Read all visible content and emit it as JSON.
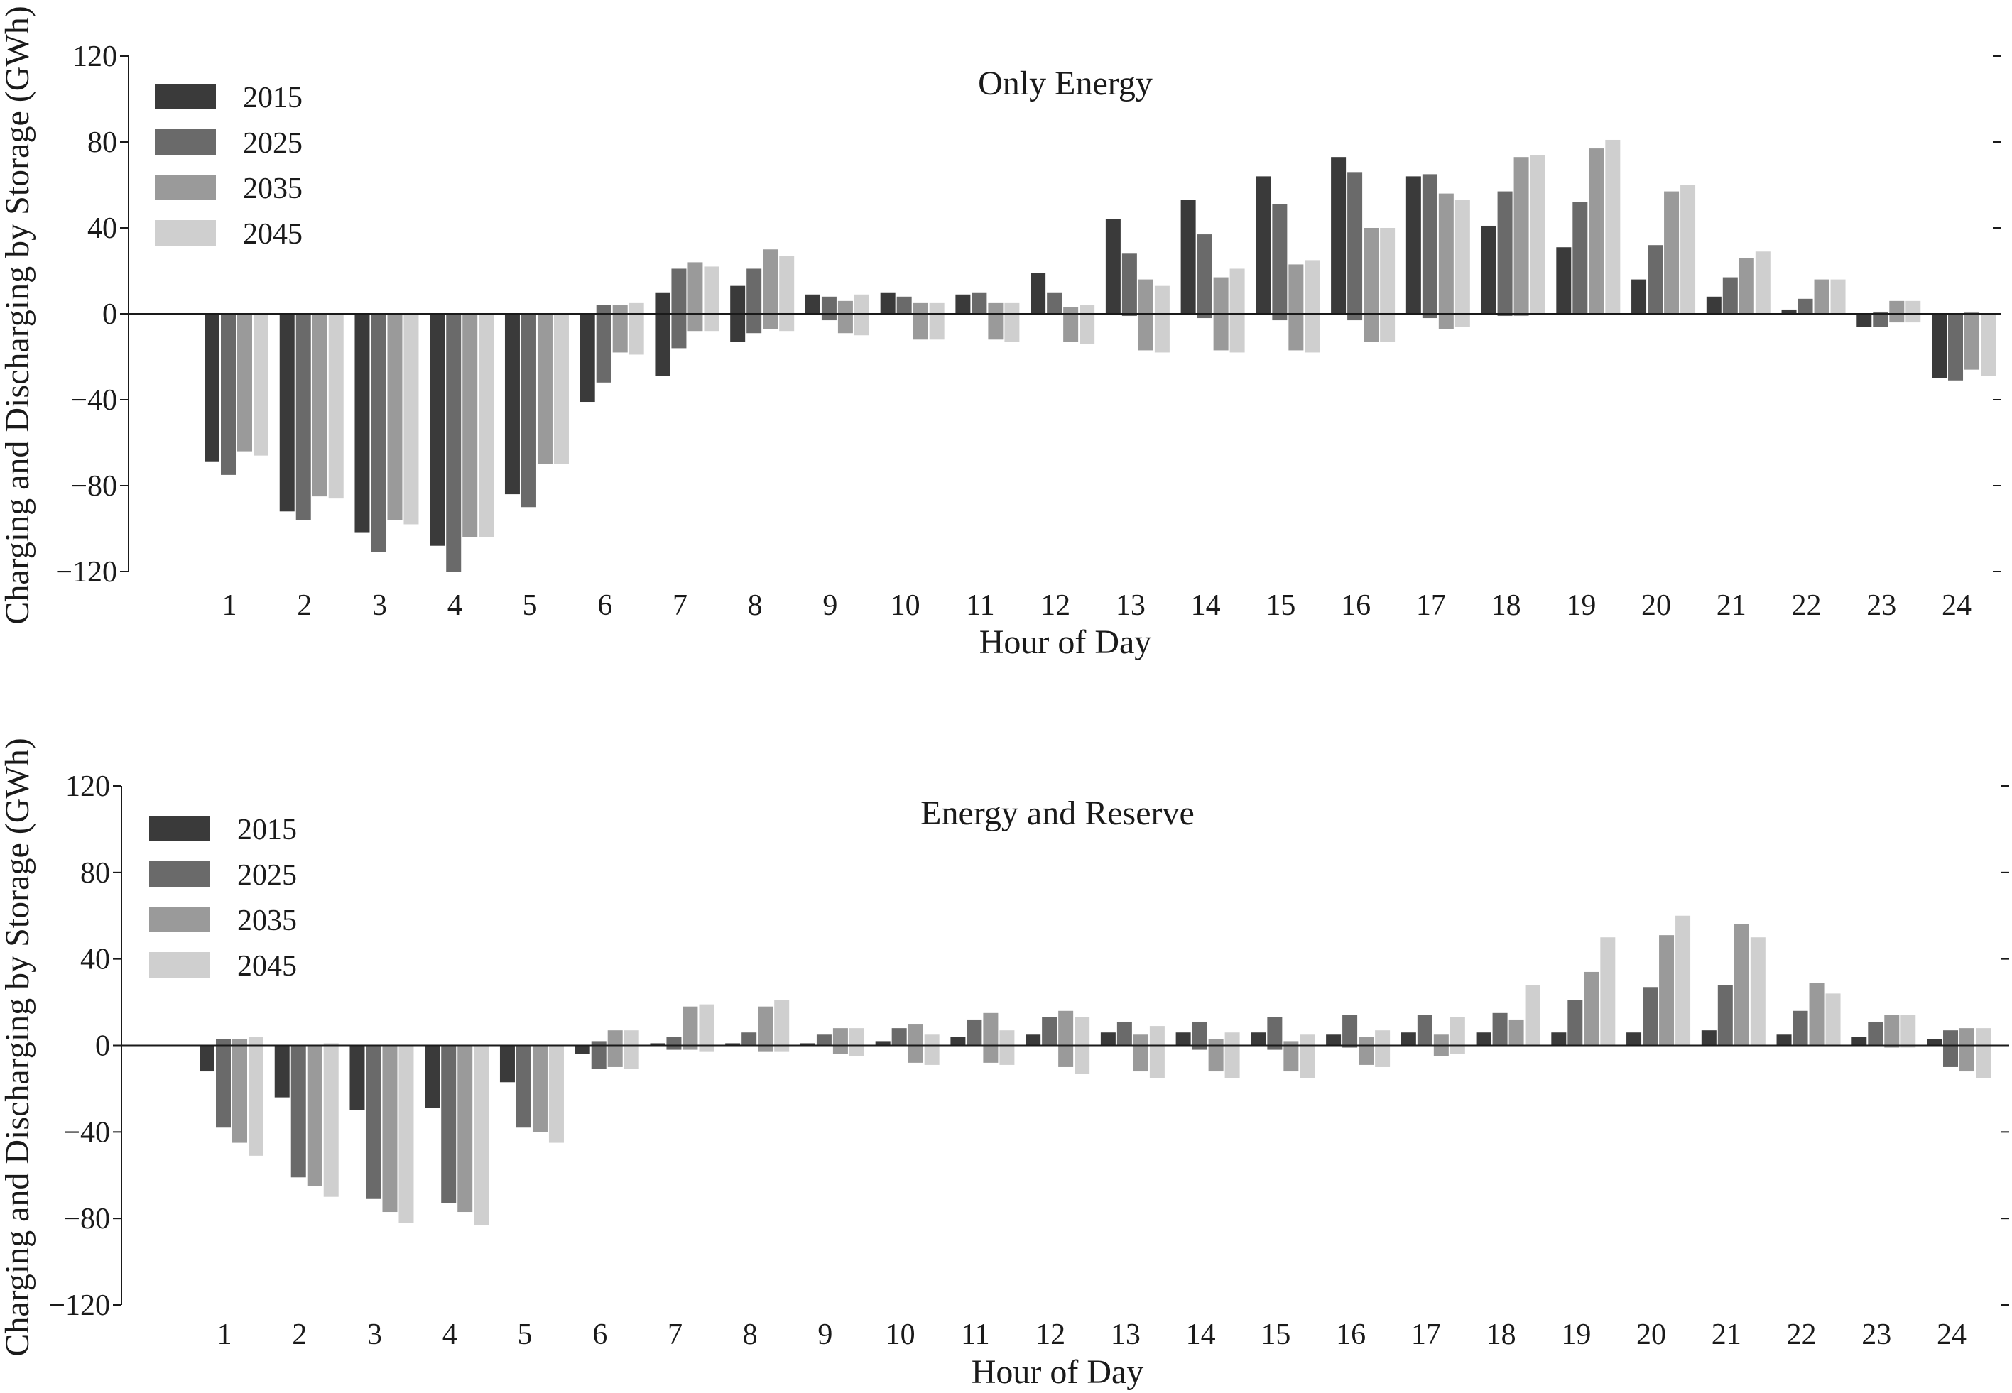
{
  "colors": {
    "2015": "#3a3a3a",
    "2025": "#6a6a6a",
    "2035": "#9a9a9a",
    "2045": "#cfcfcf",
    "axis": "#1a1a1a"
  },
  "chart_data": [
    {
      "type": "bar",
      "title": "Only Energy",
      "xlabel": "Hour of Day",
      "ylabel": "Charging and Discharging by Storage (GWh)",
      "ylim": [
        -120,
        120
      ],
      "yticks": [
        120,
        80,
        40,
        0,
        -40,
        -80,
        -120
      ],
      "ytick_labels": [
        "120",
        "80",
        "40",
        "0",
        "−40",
        "−80",
        "−120"
      ],
      "categories": [
        "1",
        "2",
        "3",
        "4",
        "5",
        "6",
        "7",
        "8",
        "9",
        "10",
        "11",
        "12",
        "13",
        "14",
        "15",
        "16",
        "17",
        "18",
        "19",
        "20",
        "21",
        "22",
        "23",
        "24"
      ],
      "legend": [
        "2015",
        "2025",
        "2035",
        "2045"
      ],
      "legend_position": "top-left",
      "series": [
        {
          "name": "2015",
          "pos": [
            0,
            0,
            0,
            0,
            0,
            0,
            10,
            13,
            9,
            10,
            9,
            19,
            44,
            53,
            64,
            73,
            64,
            41,
            31,
            16,
            8,
            2,
            0,
            0
          ],
          "neg": [
            -69,
            -92,
            -102,
            -108,
            -84,
            -41,
            -29,
            -13,
            0,
            0,
            0,
            0,
            0,
            0,
            0,
            0,
            0,
            0,
            0,
            0,
            0,
            0,
            -6,
            -30
          ]
        },
        {
          "name": "2025",
          "pos": [
            0,
            0,
            0,
            0,
            0,
            4,
            21,
            21,
            8,
            8,
            10,
            10,
            28,
            37,
            51,
            66,
            65,
            57,
            52,
            32,
            17,
            7,
            1,
            0
          ],
          "neg": [
            -75,
            -96,
            -111,
            -120,
            -90,
            -32,
            -16,
            -9,
            -3,
            0,
            0,
            0,
            -1,
            -2,
            -3,
            -3,
            -2,
            -1,
            0,
            0,
            0,
            0,
            -6,
            -31
          ]
        },
        {
          "name": "2035",
          "pos": [
            0,
            0,
            0,
            0,
            0,
            4,
            24,
            30,
            6,
            5,
            5,
            3,
            16,
            17,
            23,
            40,
            56,
            73,
            77,
            57,
            26,
            16,
            6,
            1
          ],
          "neg": [
            -64,
            -85,
            -96,
            -104,
            -70,
            -18,
            -8,
            -7,
            -9,
            -12,
            -12,
            -13,
            -17,
            -17,
            -17,
            -13,
            -7,
            -1,
            0,
            0,
            0,
            0,
            -4,
            -26
          ]
        },
        {
          "name": "2045",
          "pos": [
            0,
            0,
            0,
            0,
            0,
            5,
            22,
            27,
            9,
            5,
            5,
            4,
            13,
            21,
            25,
            40,
            53,
            74,
            81,
            60,
            29,
            16,
            6,
            0
          ],
          "neg": [
            -66,
            -86,
            -98,
            -104,
            -70,
            -19,
            -8,
            -8,
            -10,
            -12,
            -13,
            -14,
            -18,
            -18,
            -18,
            -13,
            -6,
            0,
            0,
            0,
            0,
            0,
            -4,
            -29
          ]
        }
      ]
    },
    {
      "type": "bar",
      "title": "Energy and Reserve",
      "xlabel": "Hour of Day",
      "ylabel": "Charging and Discharging by Storage (GWh)",
      "ylim": [
        -120,
        120
      ],
      "yticks": [
        120,
        80,
        40,
        0,
        -40,
        -80,
        -120
      ],
      "ytick_labels": [
        "120",
        "80",
        "40",
        "0",
        "−40",
        "−80",
        "−120"
      ],
      "categories": [
        "1",
        "2",
        "3",
        "4",
        "5",
        "6",
        "7",
        "8",
        "9",
        "10",
        "11",
        "12",
        "13",
        "14",
        "15",
        "16",
        "17",
        "18",
        "19",
        "20",
        "21",
        "22",
        "23",
        "24"
      ],
      "legend": [
        "2015",
        "2025",
        "2035",
        "2045"
      ],
      "legend_position": "top-left",
      "series": [
        {
          "name": "2015",
          "pos": [
            0,
            0,
            0,
            0,
            0,
            0,
            1,
            1,
            1,
            2,
            4,
            5,
            6,
            6,
            6,
            5,
            6,
            6,
            6,
            6,
            7,
            5,
            4,
            3
          ],
          "neg": [
            -12,
            -24,
            -30,
            -29,
            -17,
            -4,
            0,
            0,
            0,
            0,
            0,
            0,
            0,
            0,
            0,
            0,
            0,
            0,
            0,
            0,
            0,
            0,
            0,
            0
          ]
        },
        {
          "name": "2025",
          "pos": [
            3,
            0,
            0,
            0,
            0,
            2,
            4,
            6,
            5,
            8,
            12,
            13,
            11,
            11,
            13,
            14,
            14,
            15,
            21,
            27,
            28,
            16,
            11,
            7
          ],
          "neg": [
            -38,
            -61,
            -71,
            -73,
            -38,
            -11,
            -2,
            0,
            0,
            0,
            0,
            0,
            0,
            -2,
            -2,
            -1,
            0,
            0,
            0,
            0,
            0,
            0,
            0,
            -10
          ]
        },
        {
          "name": "2035",
          "pos": [
            3,
            0,
            0,
            0,
            0,
            7,
            18,
            18,
            8,
            10,
            15,
            16,
            5,
            3,
            2,
            4,
            5,
            12,
            34,
            51,
            56,
            29,
            14,
            8
          ],
          "neg": [
            -45,
            -65,
            -77,
            -77,
            -40,
            -10,
            -2,
            -3,
            -4,
            -8,
            -8,
            -10,
            -12,
            -12,
            -12,
            -9,
            -5,
            0,
            0,
            0,
            0,
            0,
            -1,
            -12
          ]
        },
        {
          "name": "2045",
          "pos": [
            4,
            1,
            0,
            0,
            0,
            7,
            19,
            21,
            8,
            5,
            7,
            13,
            9,
            6,
            5,
            7,
            13,
            28,
            50,
            60,
            50,
            24,
            14,
            8
          ],
          "neg": [
            -51,
            -70,
            -82,
            -83,
            -45,
            -11,
            -3,
            -3,
            -5,
            -9,
            -9,
            -13,
            -15,
            -15,
            -15,
            -10,
            -4,
            0,
            0,
            0,
            0,
            0,
            -1,
            -15
          ]
        }
      ]
    }
  ]
}
